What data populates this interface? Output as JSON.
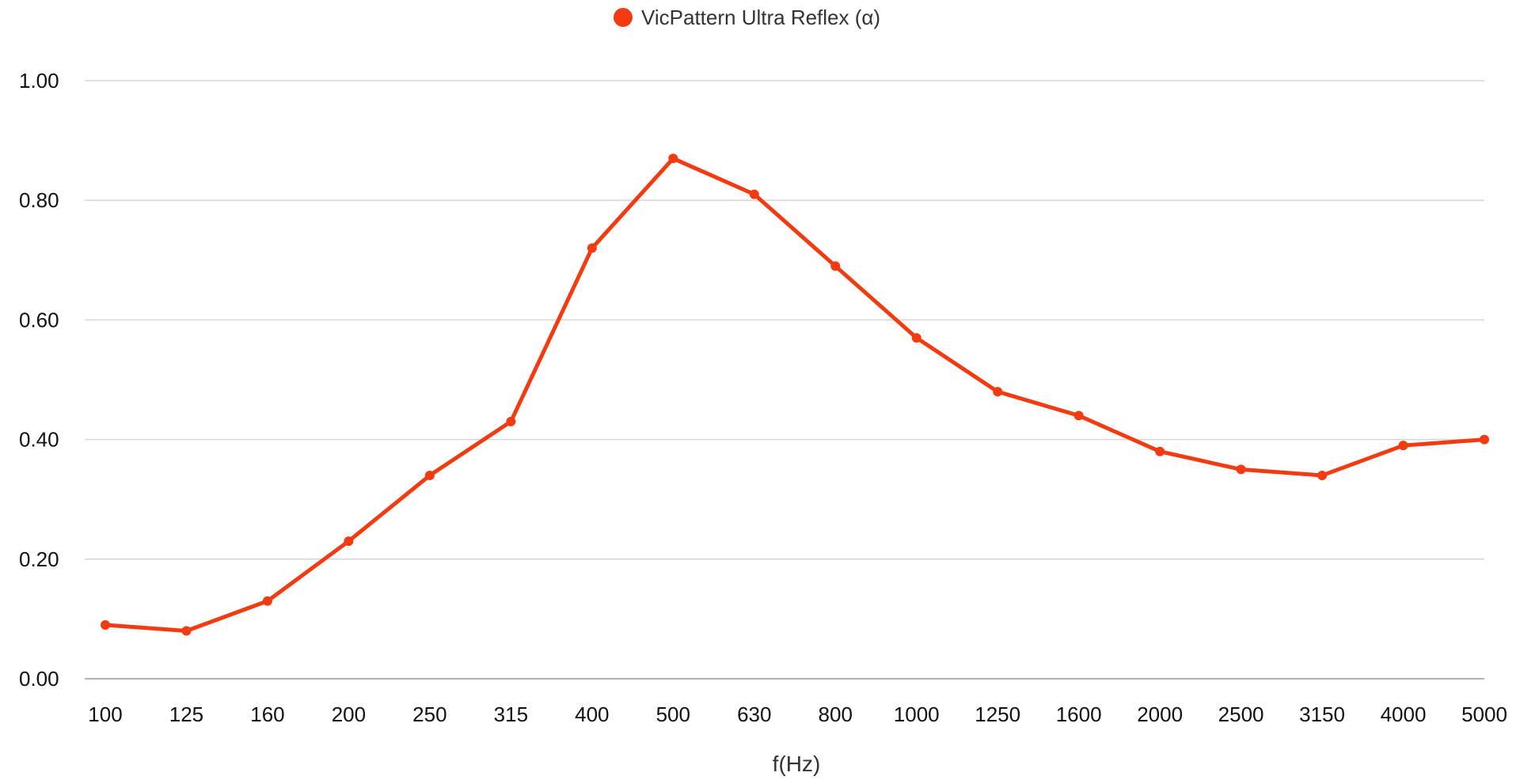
{
  "chart_data": {
    "type": "line",
    "xlabel": "f(Hz)",
    "ylabel": "",
    "ylim": [
      0,
      1
    ],
    "yticks": [
      "0.00",
      "0.20",
      "0.40",
      "0.60",
      "0.80",
      "1.00"
    ],
    "ytick_values": [
      0,
      0.2,
      0.4,
      0.6,
      0.8,
      1.0
    ],
    "grid": true,
    "legend_position": "top-center",
    "categories": [
      "100",
      "125",
      "160",
      "200",
      "250",
      "315",
      "400",
      "500",
      "630",
      "800",
      "1000",
      "1250",
      "1600",
      "2000",
      "2500",
      "3150",
      "4000",
      "5000"
    ],
    "series": [
      {
        "name": "VicPattern Ultra Reflex (α)",
        "color": "#f33b12",
        "values": [
          0.09,
          0.08,
          0.13,
          0.23,
          0.34,
          0.43,
          0.72,
          0.87,
          0.81,
          0.69,
          0.57,
          0.48,
          0.44,
          0.38,
          0.35,
          0.34,
          0.39,
          0.4
        ]
      }
    ]
  }
}
